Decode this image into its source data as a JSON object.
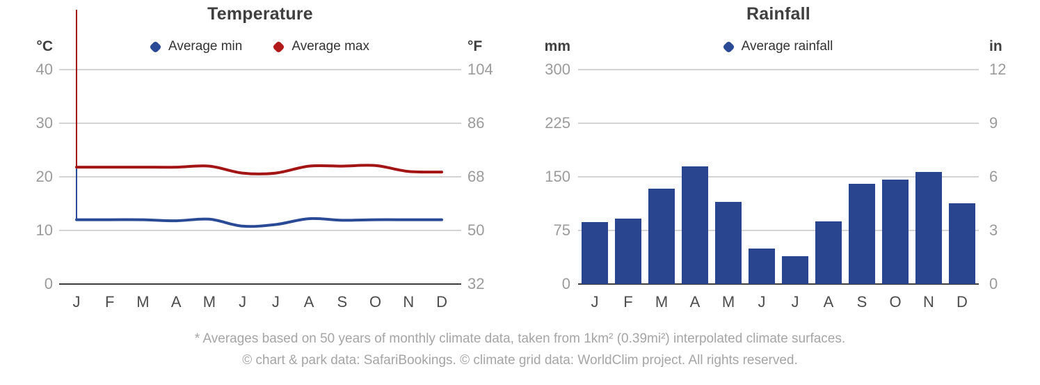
{
  "temperature_chart": {
    "title": "Temperature",
    "unit_left": "°C",
    "unit_right": "°F"
  },
  "rainfall_chart": {
    "title": "Rainfall",
    "unit_left": "mm",
    "unit_right": "in"
  },
  "footer": {
    "line1": "* Averages based on 50 years of monthly climate data, taken from 1km² (0.39mi²) interpolated climate surfaces.",
    "line2": "© chart & park data: SafariBookings. © climate grid data: WorldClim project. All rights reserved."
  },
  "colors": {
    "avg_min_blue": "#2b4a96",
    "avg_max_red": "#a31414",
    "legend_red": "#b21a1a",
    "bar_blue": "#2a4590",
    "gridline": "#d4d4d4",
    "axis": "#3d3d3d"
  },
  "chart_data": [
    {
      "type": "line",
      "title": "Temperature",
      "categories": [
        "J",
        "F",
        "M",
        "A",
        "M",
        "J",
        "J",
        "A",
        "S",
        "O",
        "N",
        "D"
      ],
      "series": [
        {
          "name": "Average min",
          "color": "#2b4a96",
          "values": [
            12.0,
            12.0,
            12.0,
            11.8,
            12.1,
            10.8,
            11.1,
            12.2,
            11.9,
            12.0,
            12.0,
            12.0
          ]
        },
        {
          "name": "Average max",
          "color": "#a31414",
          "values": [
            21.8,
            21.8,
            21.8,
            21.8,
            22.0,
            20.7,
            20.7,
            22.0,
            22.0,
            22.1,
            21.0,
            20.9
          ]
        }
      ],
      "unit_left": "°C",
      "unit_right": "°F",
      "yticks_left": [
        40,
        30,
        20,
        10,
        0
      ],
      "yticks_right": [
        104,
        86,
        68,
        50,
        32
      ],
      "ylim": [
        0,
        45
      ],
      "grid": true,
      "legend_position": "top"
    },
    {
      "type": "bar",
      "title": "Rainfall",
      "categories": [
        "J",
        "F",
        "M",
        "A",
        "M",
        "J",
        "J",
        "A",
        "S",
        "O",
        "N",
        "D"
      ],
      "series": [
        {
          "name": "Average rainfall",
          "color": "#2a4590",
          "values": [
            87,
            92,
            133,
            165,
            115,
            50,
            39,
            88,
            140,
            146,
            157,
            113
          ]
        }
      ],
      "unit_left": "mm",
      "unit_right": "in",
      "yticks_left": [
        300,
        225,
        150,
        75,
        0
      ],
      "yticks_right": [
        12,
        9,
        6,
        3,
        0
      ],
      "ylim": [
        0,
        330
      ],
      "grid": true,
      "legend_position": "top"
    }
  ]
}
